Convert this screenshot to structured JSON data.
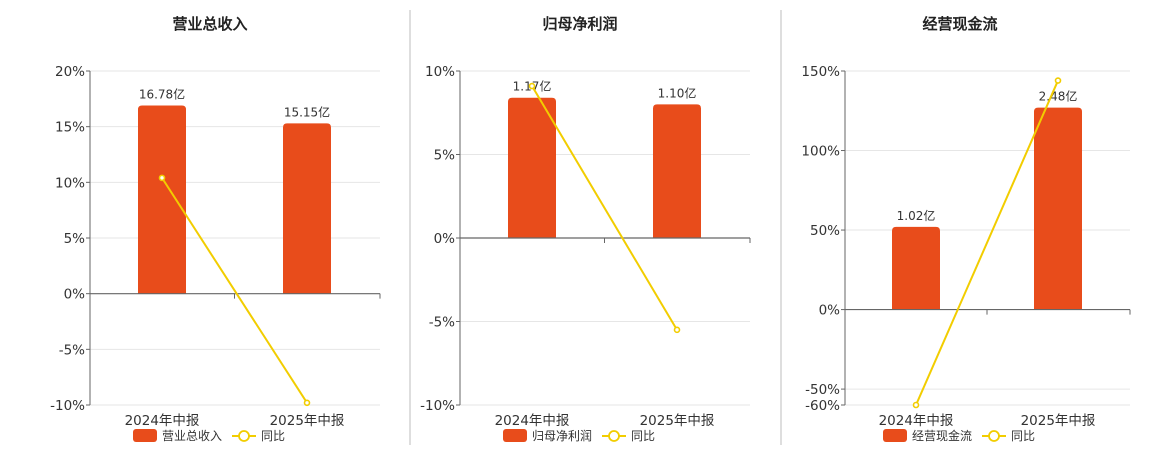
{
  "colors": {
    "bar": "#E84C1B",
    "line": "#F2CD00",
    "axis": "#666666",
    "grid": "#e6e6e6",
    "divider": "#bdbdbd"
  },
  "chart_data": [
    {
      "type": "bar",
      "title": "营业总收入",
      "categories": [
        "2024年中报",
        "2025年中报"
      ],
      "bar_axis": {
        "ticks": [
          "20%",
          "15%",
          "10%",
          "5%",
          "0%",
          "-5%",
          "-10%"
        ],
        "ylim": [
          -10,
          20
        ]
      },
      "series": [
        {
          "name": "营业总收入",
          "kind": "bar",
          "values": [
            16.9,
            15.3
          ],
          "labels": [
            "16.78亿",
            "15.15亿"
          ]
        },
        {
          "name": "同比",
          "kind": "line",
          "values": [
            10.4,
            -9.8
          ]
        }
      ],
      "legend": [
        "营业总收入",
        "同比"
      ],
      "legend_position": "bottom"
    },
    {
      "type": "bar",
      "title": "归母净利润",
      "categories": [
        "2024年中报",
        "2025年中报"
      ],
      "bar_axis": {
        "ticks": [
          "10%",
          "5%",
          "0%",
          "-5%",
          "-10%"
        ],
        "ylim": [
          -10,
          10
        ]
      },
      "series": [
        {
          "name": "归母净利润",
          "kind": "bar",
          "values": [
            8.4,
            8.0
          ],
          "labels": [
            "1.17亿",
            "1.10亿"
          ]
        },
        {
          "name": "同比",
          "kind": "line",
          "values": [
            9.1,
            -5.5
          ]
        }
      ],
      "legend": [
        "归母净利润",
        "同比"
      ],
      "legend_position": "bottom"
    },
    {
      "type": "bar",
      "title": "经营现金流",
      "categories": [
        "2024年中报",
        "2025年中报"
      ],
      "bar_axis": {
        "ticks": [
          "150%",
          "100%",
          "50%",
          "0%",
          "-50%",
          "-60%"
        ],
        "ylim": [
          -60,
          150
        ]
      },
      "series": [
        {
          "name": "经营现金流",
          "kind": "bar",
          "values": [
            52,
            127
          ],
          "labels": [
            "1.02亿",
            "2.48亿"
          ]
        },
        {
          "name": "同比",
          "kind": "line",
          "values": [
            -60,
            144
          ]
        }
      ],
      "legend": [
        "经营现金流",
        "同比"
      ],
      "legend_position": "bottom"
    }
  ]
}
